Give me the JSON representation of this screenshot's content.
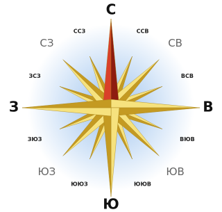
{
  "directions": [
    {
      "label": "С"
    },
    {
      "label": "ССВ"
    },
    {
      "label": "СВ"
    },
    {
      "label": "ВСВ"
    },
    {
      "label": "В"
    },
    {
      "label": "ВЮВ"
    },
    {
      "label": "ЮВ"
    },
    {
      "label": "ЮЮВ"
    },
    {
      "label": "Ю"
    },
    {
      "label": "ЮЮЗ"
    },
    {
      "label": "ЮЗ"
    },
    {
      "label": "ЗЮЗ"
    },
    {
      "label": "З"
    },
    {
      "label": "ЗСЗ"
    },
    {
      "label": "СЗ"
    },
    {
      "label": "ССЗ"
    }
  ]
}
